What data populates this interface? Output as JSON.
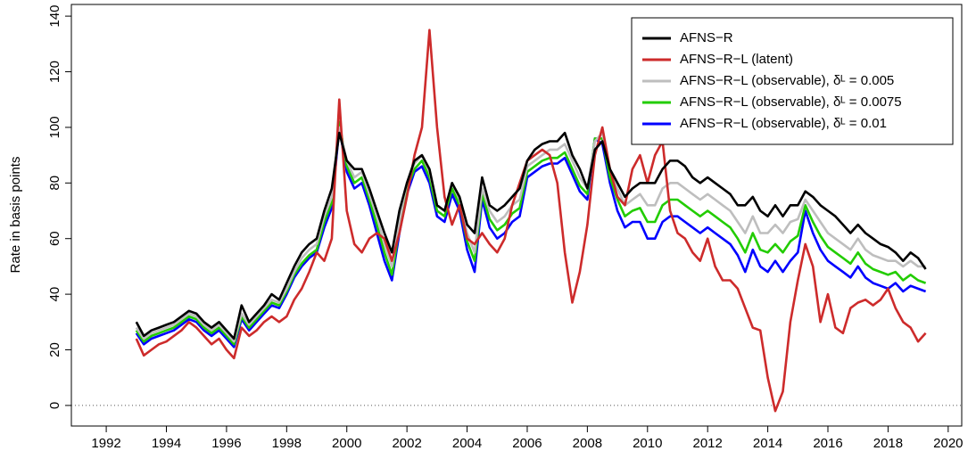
{
  "chart_data": {
    "type": "line",
    "y_label": "Rate in basis points",
    "x": [
      1993,
      1993.25,
      1993.5,
      1993.75,
      1994,
      1994.25,
      1994.5,
      1994.75,
      1995,
      1995.25,
      1995.5,
      1995.75,
      1996,
      1996.25,
      1996.5,
      1996.75,
      1997,
      1997.25,
      1997.5,
      1997.75,
      1998,
      1998.25,
      1998.5,
      1998.75,
      1999,
      1999.25,
      1999.5,
      1999.75,
      2000,
      2000.25,
      2000.5,
      2000.75,
      2001,
      2001.25,
      2001.5,
      2001.75,
      2002,
      2002.25,
      2002.5,
      2002.75,
      2003,
      2003.25,
      2003.5,
      2003.75,
      2004,
      2004.25,
      2004.5,
      2004.75,
      2005,
      2005.25,
      2005.5,
      2005.75,
      2006,
      2006.25,
      2006.5,
      2006.75,
      2007,
      2007.25,
      2007.5,
      2007.75,
      2008,
      2008.25,
      2008.5,
      2008.75,
      2009,
      2009.25,
      2009.5,
      2009.75,
      2010,
      2010.25,
      2010.5,
      2010.75,
      2011,
      2011.25,
      2011.5,
      2011.75,
      2012,
      2012.25,
      2012.5,
      2012.75,
      2013,
      2013.25,
      2013.5,
      2013.75,
      2014,
      2014.25,
      2014.5,
      2014.75,
      2015,
      2015.25,
      2015.5,
      2015.75,
      2016,
      2016.25,
      2016.5,
      2016.75,
      2017,
      2017.25,
      2017.5,
      2017.75,
      2018,
      2018.25,
      2018.5,
      2018.75,
      2019,
      2019.25
    ],
    "series": [
      {
        "name": "AFNS−R",
        "color": "#000000",
        "values": [
          30,
          25,
          27,
          28,
          29,
          30,
          32,
          34,
          33,
          30,
          28,
          30,
          27,
          24,
          36,
          30,
          33,
          36,
          40,
          38,
          44,
          50,
          55,
          58,
          60,
          70,
          78,
          98,
          88,
          85,
          85,
          78,
          70,
          62,
          55,
          70,
          80,
          88,
          90,
          85,
          72,
          70,
          80,
          75,
          65,
          62,
          82,
          72,
          70,
          72,
          75,
          78,
          88,
          92,
          94,
          95,
          95,
          98,
          90,
          85,
          78,
          92,
          95,
          85,
          80,
          75,
          78,
          80,
          80,
          80,
          85,
          88,
          88,
          86,
          82,
          80,
          82,
          80,
          78,
          76,
          72,
          72,
          75,
          70,
          68,
          72,
          68,
          72,
          72,
          77,
          75,
          72,
          70,
          68,
          65,
          62,
          65,
          62,
          60,
          58,
          57,
          55,
          52,
          55,
          53,
          49
        ]
      },
      {
        "name": "AFNS−R−L (latent)",
        "color": "#cd2b2b",
        "values": [
          24,
          18,
          20,
          22,
          23,
          25,
          27,
          30,
          28,
          25,
          22,
          24,
          20,
          17,
          28,
          25,
          27,
          30,
          32,
          30,
          32,
          38,
          42,
          48,
          55,
          52,
          60,
          110,
          70,
          58,
          55,
          60,
          62,
          60,
          52,
          62,
          75,
          90,
          100,
          135,
          100,
          75,
          65,
          72,
          60,
          58,
          62,
          58,
          55,
          60,
          72,
          80,
          88,
          90,
          92,
          90,
          80,
          55,
          37,
          48,
          65,
          90,
          100,
          85,
          75,
          72,
          85,
          90,
          80,
          90,
          95,
          70,
          62,
          60,
          55,
          52,
          60,
          50,
          45,
          45,
          42,
          35,
          28,
          27,
          10,
          -2,
          5,
          30,
          45,
          58,
          50,
          30,
          40,
          28,
          26,
          35,
          37,
          38,
          36,
          38,
          42,
          35,
          30,
          28,
          23,
          26
        ]
      },
      {
        "name": "AFNS−R−L (observable), δᴸ = 0.005",
        "color": "#bebebe",
        "values": [
          28,
          24,
          26,
          27,
          28,
          29,
          31,
          33,
          32,
          29,
          27,
          29,
          26,
          23,
          33,
          29,
          32,
          35,
          38,
          37,
          42,
          48,
          53,
          56,
          58,
          68,
          75,
          100,
          88,
          82,
          84,
          76,
          68,
          58,
          50,
          66,
          80,
          87,
          90,
          84,
          72,
          70,
          80,
          74,
          62,
          55,
          78,
          70,
          66,
          68,
          72,
          74,
          86,
          88,
          90,
          92,
          92,
          94,
          88,
          82,
          78,
          95,
          98,
          85,
          78,
          72,
          74,
          76,
          72,
          72,
          78,
          80,
          80,
          78,
          76,
          74,
          76,
          74,
          72,
          70,
          66,
          62,
          68,
          62,
          62,
          65,
          62,
          66,
          67,
          74,
          70,
          66,
          62,
          60,
          58,
          56,
          60,
          56,
          54,
          53,
          52,
          52,
          50,
          52,
          50,
          50
        ]
      },
      {
        "name": "AFNS−R−L (observable), δᴸ = 0.0075",
        "color": "#22cc00",
        "values": [
          27,
          23,
          25,
          26,
          27,
          28,
          30,
          32,
          31,
          28,
          26,
          28,
          25,
          22,
          32,
          28,
          31,
          34,
          37,
          36,
          41,
          47,
          51,
          54,
          56,
          66,
          73,
          102,
          86,
          80,
          82,
          74,
          65,
          55,
          47,
          64,
          78,
          85,
          88,
          82,
          70,
          68,
          78,
          72,
          59,
          52,
          76,
          67,
          63,
          65,
          69,
          71,
          84,
          86,
          88,
          89,
          89,
          91,
          85,
          79,
          76,
          96,
          96,
          82,
          74,
          68,
          70,
          71,
          66,
          66,
          72,
          74,
          74,
          72,
          70,
          68,
          70,
          68,
          66,
          64,
          60,
          55,
          62,
          56,
          55,
          58,
          55,
          59,
          61,
          72,
          66,
          61,
          57,
          55,
          53,
          51,
          55,
          51,
          49,
          48,
          47,
          48,
          45,
          47,
          45,
          44
        ]
      },
      {
        "name": "AFNS−R−L (observable), δᴸ = 0.01",
        "color": "#0000ff",
        "values": [
          26,
          22,
          24,
          25,
          26,
          27,
          29,
          31,
          30,
          27,
          25,
          27,
          24,
          21,
          31,
          27,
          30,
          33,
          36,
          35,
          40,
          46,
          50,
          53,
          55,
          64,
          71,
          100,
          84,
          78,
          80,
          72,
          62,
          52,
          45,
          62,
          76,
          84,
          86,
          80,
          68,
          66,
          76,
          70,
          56,
          48,
          74,
          64,
          60,
          62,
          66,
          68,
          82,
          84,
          86,
          87,
          87,
          89,
          83,
          77,
          74,
          96,
          94,
          80,
          70,
          64,
          66,
          66,
          60,
          60,
          66,
          68,
          68,
          66,
          64,
          62,
          64,
          62,
          60,
          58,
          54,
          48,
          56,
          50,
          48,
          52,
          48,
          52,
          55,
          70,
          62,
          56,
          52,
          50,
          48,
          46,
          50,
          46,
          44,
          43,
          42,
          44,
          41,
          43,
          42,
          41
        ]
      }
    ],
    "xlim": [
      1990.84,
      2020.45
    ],
    "xticks": [
      1992,
      1994,
      1996,
      1998,
      2000,
      2002,
      2004,
      2006,
      2008,
      2010,
      2012,
      2014,
      2016,
      2018,
      2020
    ],
    "ylim": [
      -7.4,
      144.2
    ],
    "yticks": [
      0,
      20,
      40,
      60,
      80,
      100,
      120,
      140
    ],
    "reference_line": 0,
    "legend": "top-right"
  }
}
